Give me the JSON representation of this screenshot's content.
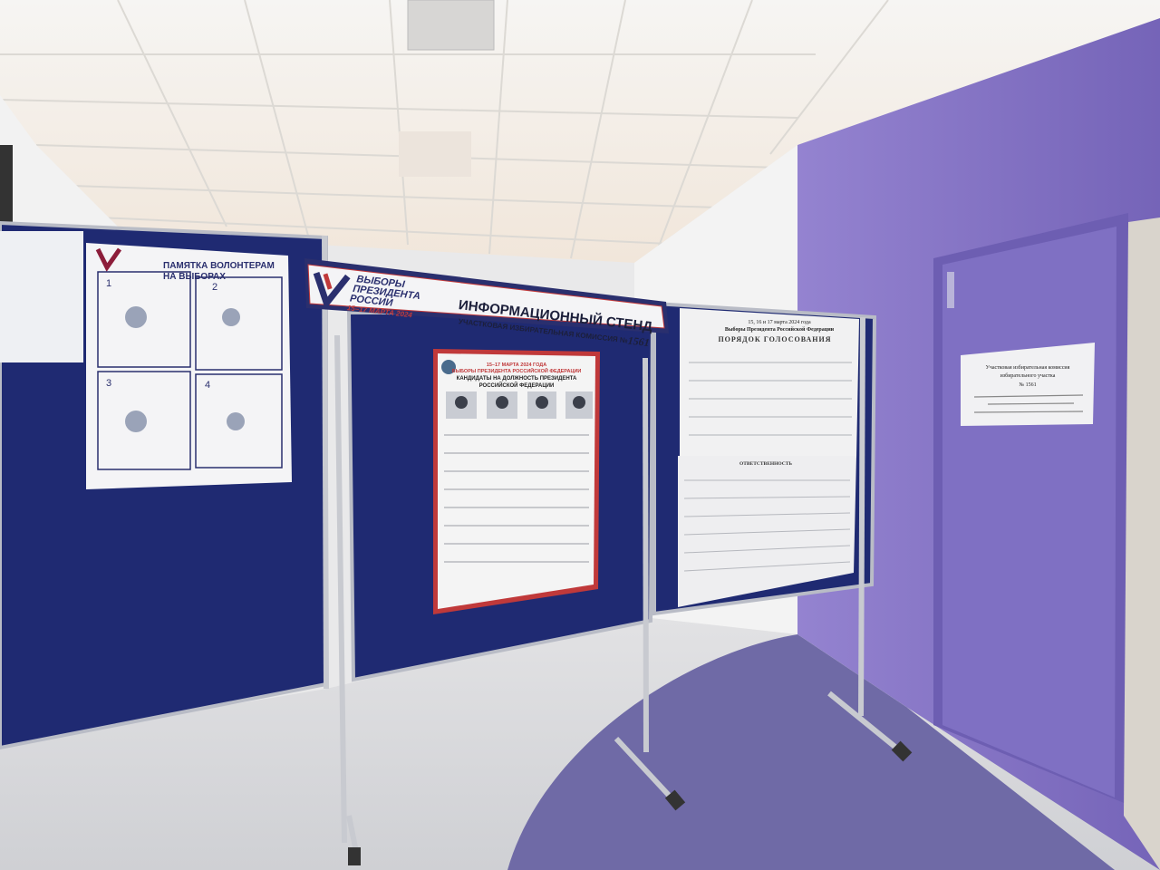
{
  "colors": {
    "board": "#1f2a72",
    "wall_purple": "#8a78c8",
    "door": "#7b6bc0",
    "floor_purple": "#6f6aa6",
    "ceiling": "#f3f1ee",
    "brand_red": "#c0393a",
    "brand_navy": "#2a2f6e"
  },
  "header_sign": {
    "logo_line1": "ВЫБОРЫ",
    "logo_line2": "ПРЕЗИДЕНТА",
    "logo_line3": "РОССИИ",
    "logo_dates": "15–17 МАРТА 2024",
    "title": "ИНФОРМАЦИОННЫЙ СТЕНД",
    "subtitle": "УЧАСТКОВАЯ ИЗБИРАТЕЛЬНАЯ КОМИССИЯ №",
    "number": "1561"
  },
  "left_poster": {
    "title_line1": "ПАМЯТКА ВОЛОНТЕРАМ",
    "title_line2": "НА ВЫБОРАХ",
    "steps": [
      "1",
      "2",
      "3",
      "4"
    ]
  },
  "center_poster": {
    "line1": "15–17 МАРТА 2024 ГОДА",
    "line2": "ВЫБОРЫ ПРЕЗИДЕНТА РОССИЙСКОЙ ФЕДЕРАЦИИ",
    "line3": "КАНДИДАТЫ НА ДОЛЖНОСТЬ ПРЕЗИДЕНТА",
    "line4": "РОССИЙСКОЙ ФЕДЕРАЦИИ"
  },
  "right_poster": {
    "dates": "15, 16 и 17 марта 2024 года",
    "election": "Выборы Президента Российской Федерации",
    "title": "ПОРЯДОК ГОЛОСОВАНИЯ",
    "lower_title": "ОТВЕТСТВЕННОСТЬ"
  },
  "door_sign": {
    "line1": "Участковая избирательная комиссия",
    "line2": "избирательного участка",
    "line3": "№ 1561"
  }
}
